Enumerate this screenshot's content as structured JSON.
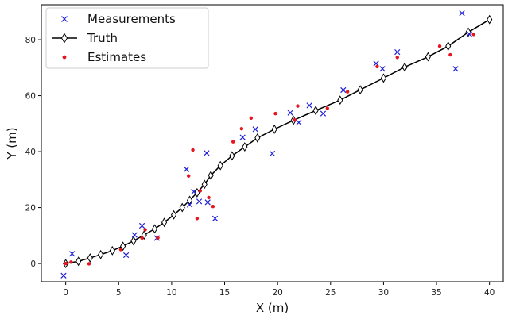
{
  "chart_data": {
    "type": "scatter",
    "title": "",
    "xlabel": "X (m)",
    "ylabel": "Y (m)",
    "xlim": [
      -2.3,
      41.3
    ],
    "ylim": [
      -6.5,
      92.5
    ],
    "x_ticks": [
      0,
      5,
      10,
      15,
      20,
      25,
      30,
      35,
      40
    ],
    "y_ticks": [
      0,
      20,
      40,
      60,
      80
    ],
    "grid": false,
    "legend_position": "top-left",
    "series": [
      {
        "name": "Measurements",
        "marker": "x",
        "color": "#1f1fd6",
        "points": [
          [
            -0.2,
            -4.3
          ],
          [
            0.6,
            3.5
          ],
          [
            5.7,
            3.0
          ],
          [
            6.5,
            10.2
          ],
          [
            7.2,
            13.5
          ],
          [
            8.6,
            9.1
          ],
          [
            11.4,
            33.7
          ],
          [
            11.7,
            21.0
          ],
          [
            12.1,
            25.7
          ],
          [
            12.6,
            22.2
          ],
          [
            13.3,
            39.5
          ],
          [
            13.4,
            21.9
          ],
          [
            14.1,
            16.1
          ],
          [
            16.7,
            45.1
          ],
          [
            17.9,
            48.0
          ],
          [
            19.5,
            39.3
          ],
          [
            21.2,
            53.9
          ],
          [
            22.0,
            50.4
          ],
          [
            23.0,
            56.5
          ],
          [
            24.3,
            53.6
          ],
          [
            26.2,
            62.0
          ],
          [
            29.3,
            71.5
          ],
          [
            29.9,
            69.6
          ],
          [
            31.3,
            75.6
          ],
          [
            36.8,
            69.6
          ],
          [
            37.4,
            89.5
          ],
          [
            38.1,
            82.0
          ]
        ]
      },
      {
        "name": "Truth",
        "marker": "diamond-line",
        "color": "#000000",
        "points": [
          [
            0,
            0.0
          ],
          [
            1.2,
            0.8
          ],
          [
            2.3,
            2.0
          ],
          [
            3.3,
            3.2
          ],
          [
            4.4,
            4.6
          ],
          [
            5.4,
            6.2
          ],
          [
            6.4,
            8.1
          ],
          [
            7.4,
            10.2
          ],
          [
            8.4,
            12.4
          ],
          [
            9.3,
            14.7
          ],
          [
            10.2,
            17.4
          ],
          [
            11.0,
            20.0
          ],
          [
            11.7,
            22.6
          ],
          [
            12.4,
            25.3
          ],
          [
            13.1,
            28.3
          ],
          [
            13.7,
            31.5
          ],
          [
            14.6,
            35.0
          ],
          [
            15.7,
            38.5
          ],
          [
            16.9,
            41.7
          ],
          [
            18.1,
            44.9
          ],
          [
            19.7,
            48.0
          ],
          [
            21.5,
            51.2
          ],
          [
            23.6,
            54.7
          ],
          [
            25.9,
            58.4
          ],
          [
            27.8,
            62.1
          ],
          [
            30.0,
            66.3
          ],
          [
            32.0,
            70.2
          ],
          [
            34.2,
            73.9
          ],
          [
            36.1,
            77.7
          ],
          [
            38.0,
            82.7
          ],
          [
            40.0,
            87.2
          ]
        ]
      },
      {
        "name": "Estimates",
        "marker": "dot",
        "color": "#e8141e",
        "points": [
          [
            0,
            0.0
          ],
          [
            0.5,
            0.5
          ],
          [
            2.2,
            -0.1
          ],
          [
            5.2,
            5.0
          ],
          [
            7.2,
            9.1
          ],
          [
            7.5,
            12.1
          ],
          [
            8.7,
            9.2
          ],
          [
            11.6,
            31.3
          ],
          [
            12.0,
            40.6
          ],
          [
            12.4,
            16.1
          ],
          [
            12.7,
            26.0
          ],
          [
            13.5,
            23.6
          ],
          [
            13.9,
            20.4
          ],
          [
            15.8,
            43.5
          ],
          [
            16.6,
            48.2
          ],
          [
            17.5,
            52.0
          ],
          [
            19.8,
            53.6
          ],
          [
            21.6,
            51.3
          ],
          [
            21.9,
            56.3
          ],
          [
            24.7,
            55.5
          ],
          [
            26.6,
            61.4
          ],
          [
            29.4,
            70.4
          ],
          [
            31.3,
            73.7
          ],
          [
            35.3,
            77.7
          ],
          [
            36.3,
            74.6
          ],
          [
            38.5,
            81.9
          ]
        ]
      }
    ]
  }
}
